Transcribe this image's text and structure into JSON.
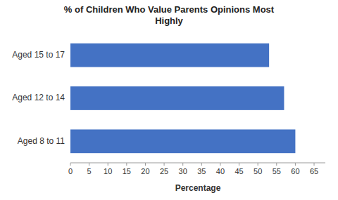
{
  "chart_data": {
    "type": "bar",
    "orientation": "horizontal",
    "title": "% of Children Who Value Parents Opinions Most\nHighly",
    "categories": [
      "Aged 15 to 17",
      "Aged 12 to 14",
      "Aged 8 to 11"
    ],
    "values": [
      53,
      57,
      60
    ],
    "color": "#4472C4",
    "xlabel": "Percentage",
    "xlim": [
      0,
      68
    ],
    "xticks": [
      0,
      5,
      10,
      15,
      20,
      25,
      30,
      35,
      40,
      45,
      50,
      55,
      60,
      65
    ],
    "grid": false
  }
}
